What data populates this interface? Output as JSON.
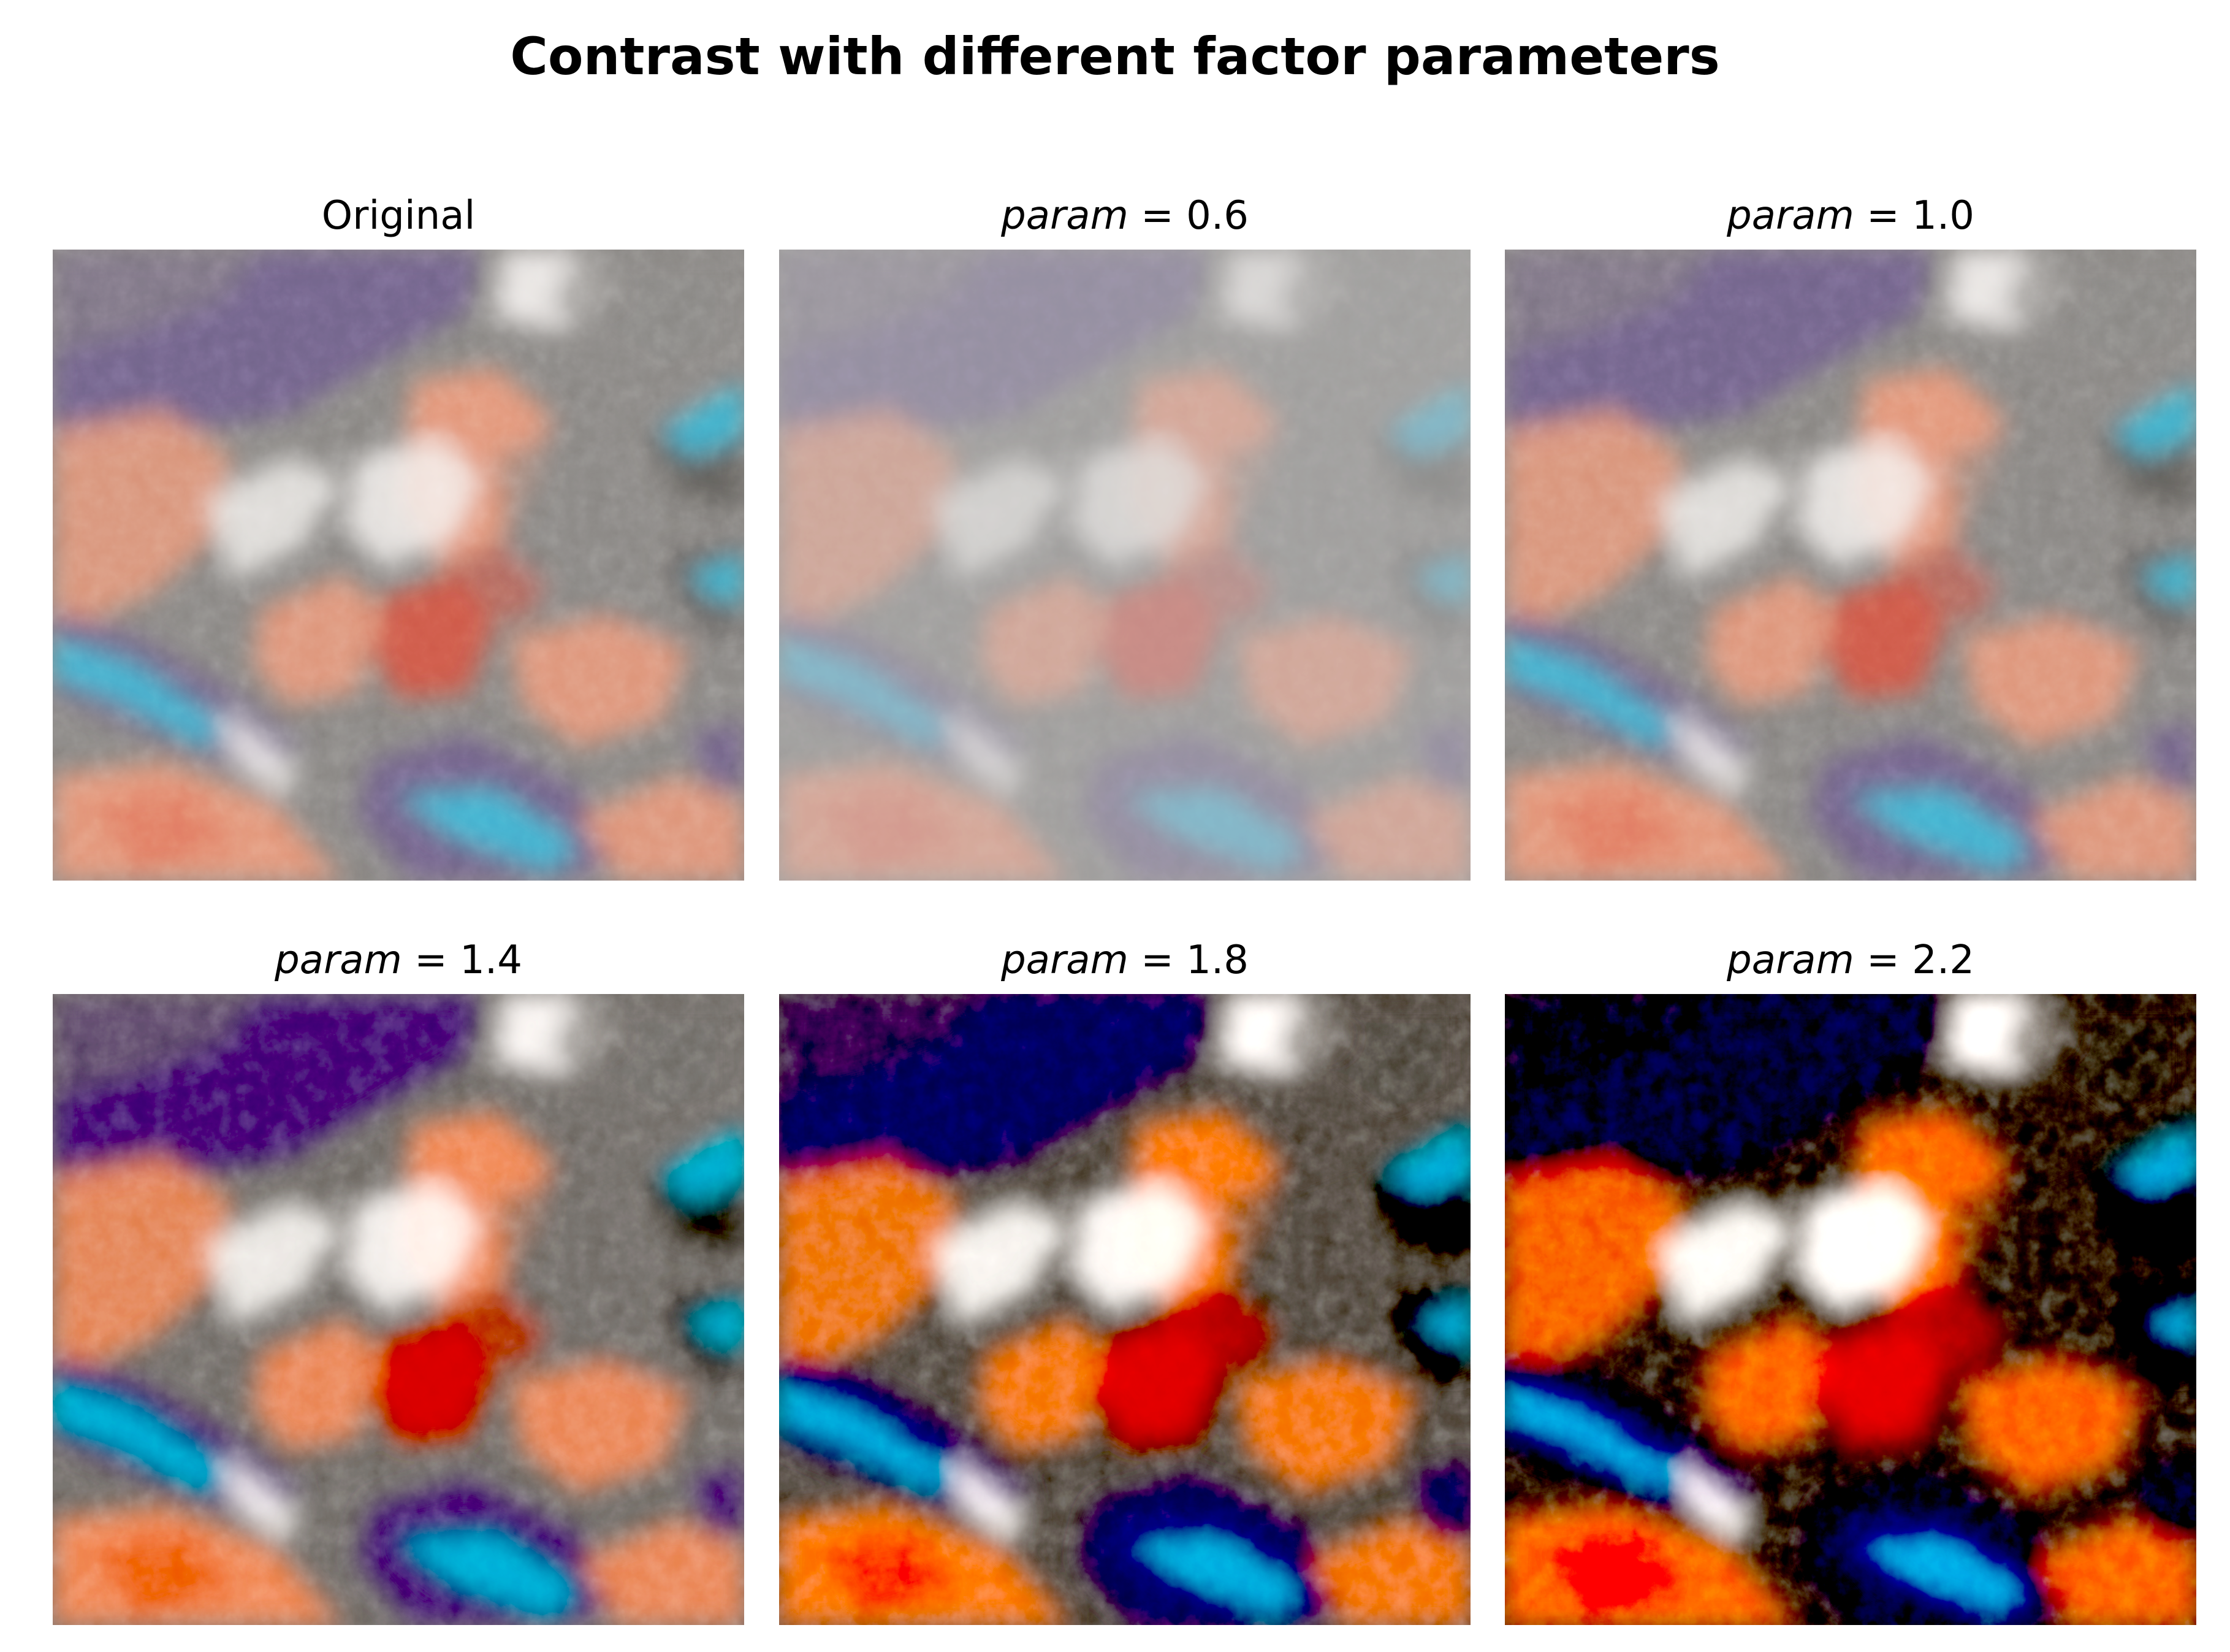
{
  "figure": {
    "title": "Contrast with different factor parameters"
  },
  "palette": {
    "gray": "#8a8784",
    "purple": "#6e5d8c",
    "salmon": "#e8987a",
    "red": "#e0503c",
    "cyan": "#3fb6d4",
    "white": "#f4f1ee",
    "dark": "#3a3834"
  },
  "panels": [
    {
      "label": "Original",
      "contrast_factor": 1.0
    },
    {
      "label_prefix": "param",
      "label_suffix": " = 0.6",
      "contrast_factor": 0.6
    },
    {
      "label_prefix": "param",
      "label_suffix": " = 1.0",
      "contrast_factor": 1.0
    },
    {
      "label_prefix": "param",
      "label_suffix": " = 1.4",
      "contrast_factor": 1.4
    },
    {
      "label_prefix": "param",
      "label_suffix": " = 1.8",
      "contrast_factor": 1.8
    },
    {
      "label_prefix": "param",
      "label_suffix": " = 2.2",
      "contrast_factor": 2.2
    }
  ]
}
